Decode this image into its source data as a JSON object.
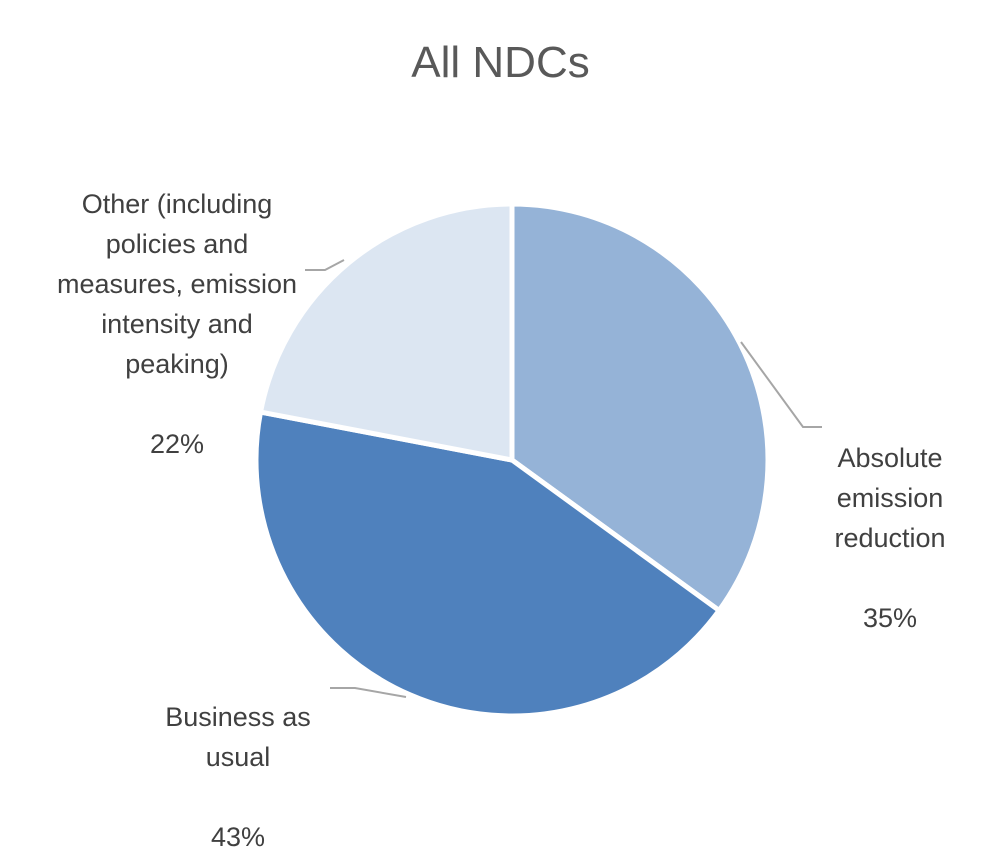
{
  "chart_data": {
    "type": "pie",
    "title": "All NDCs",
    "slices": [
      {
        "label": "Absolute emission reduction",
        "value": 35,
        "value_label": "35%",
        "color": "#95b3d7"
      },
      {
        "label": "Business as usual",
        "value": 43,
        "value_label": "43%",
        "color": "#4f81bd"
      },
      {
        "label": "Other (including policies and measures, emission intensity and peaking)",
        "value": 22,
        "value_label": "22%",
        "color": "#dce6f2"
      }
    ],
    "start_angle": "12 o'clock",
    "direction": "clockwise",
    "legend": "none",
    "data_labels": "outside, with leader lines"
  }
}
